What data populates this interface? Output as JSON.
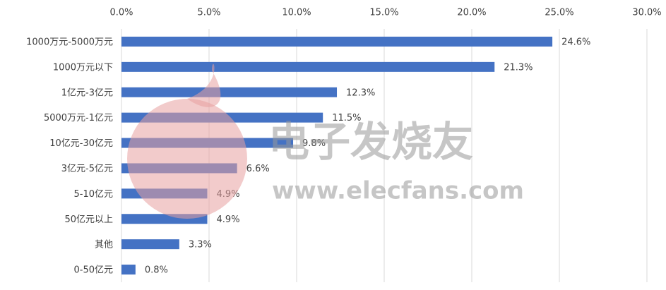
{
  "chart_data": {
    "type": "bar",
    "orientation": "horizontal",
    "categories": [
      "1000万元-5000万元",
      "1000万元以下",
      "1亿元-3亿元",
      "5000万元-1亿元",
      "10亿元-30亿元",
      "3亿元-5亿元",
      "5-10亿元",
      "50亿元以上",
      "其他",
      "0-50亿元"
    ],
    "values": [
      24.6,
      21.3,
      12.3,
      11.5,
      9.8,
      6.6,
      4.9,
      4.9,
      3.3,
      0.8
    ],
    "value_labels": [
      "24.6%",
      "21.3%",
      "12.3%",
      "11.5%",
      "9.8%",
      "6.6%",
      "4.9%",
      "4.9%",
      "3.3%",
      "0.8%"
    ],
    "color": "#4472c4",
    "xlim": [
      0,
      30
    ],
    "xticks": [
      {
        "value": 0,
        "label": "0.0%"
      },
      {
        "value": 5,
        "label": "5.0%"
      },
      {
        "value": 10,
        "label": "10.0%"
      },
      {
        "value": 15,
        "label": "15.0%"
      },
      {
        "value": 20,
        "label": "20.0%"
      },
      {
        "value": 25,
        "label": "25.0%"
      },
      {
        "value": 30,
        "label": "30.0%"
      }
    ],
    "grid": true
  },
  "watermark": {
    "brand": "电子发烧友",
    "url": "www.elecfans.com"
  }
}
